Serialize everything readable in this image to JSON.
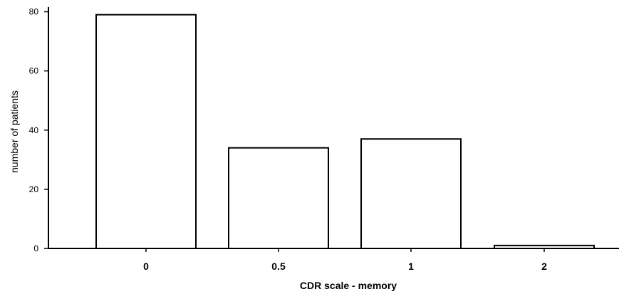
{
  "chart_data": {
    "type": "bar",
    "categories": [
      "0",
      "0.5",
      "1",
      "2"
    ],
    "values": [
      79,
      34,
      37,
      1
    ],
    "title": "",
    "xlabel": "CDR scale - memory",
    "ylabel": "number of patients",
    "ylim": [
      0,
      80
    ],
    "yticks": [
      0,
      20,
      40,
      60,
      80
    ],
    "grid": false,
    "bar_fill": "#ffffff",
    "bar_stroke": "#000000"
  }
}
